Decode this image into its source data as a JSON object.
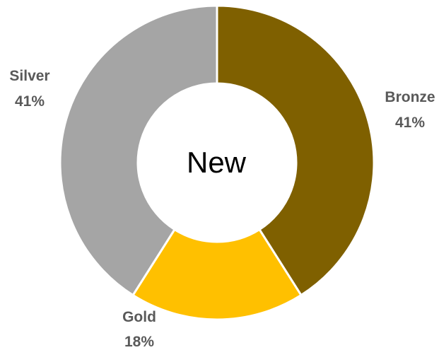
{
  "chart_data": {
    "type": "donut",
    "center_text": "New",
    "slices": [
      {
        "name": "Bronze",
        "value": 41,
        "percent_label": "41%",
        "color": "#7f6000"
      },
      {
        "name": "Gold",
        "value": 18,
        "percent_label": "18%",
        "color": "#ffc000"
      },
      {
        "name": "Silver",
        "value": 41,
        "percent_label": "41%",
        "color": "#a5a5a5"
      }
    ],
    "start_angle_deg": 0,
    "direction": "clockwise",
    "legend": "none",
    "data_labels": "outside"
  }
}
